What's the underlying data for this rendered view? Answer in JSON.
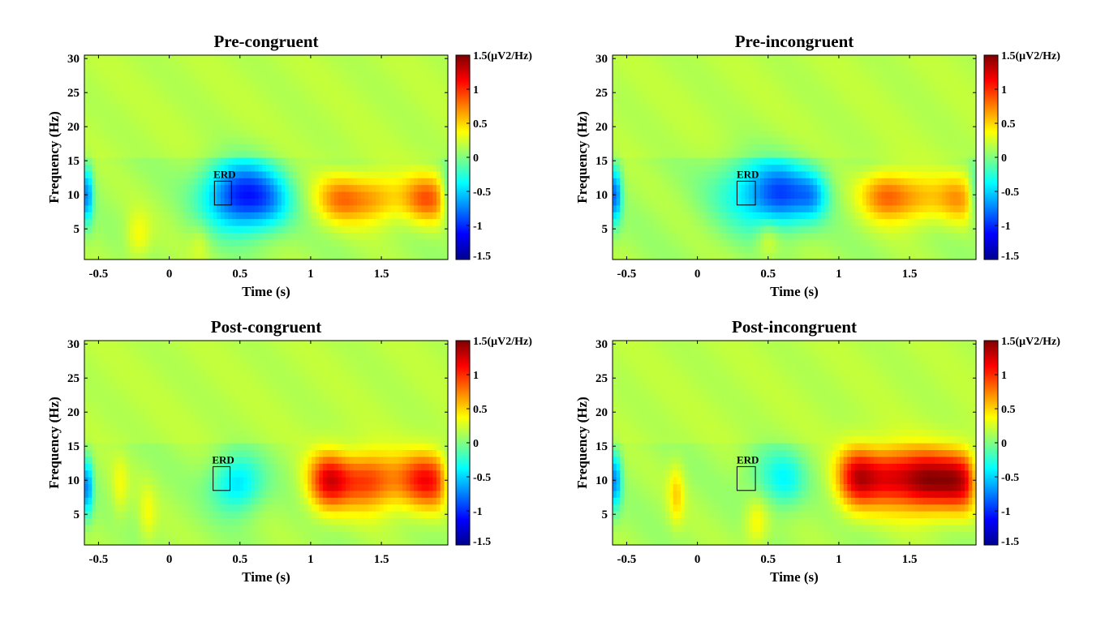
{
  "chart_data": [
    {
      "type": "heatmap",
      "title": "Pre-congruent",
      "xlabel": "Time (s)",
      "ylabel": "Frequency (Hz)",
      "xlim": [
        -0.6,
        1.97
      ],
      "ylim": [
        0.5,
        30.5
      ],
      "xticks": [
        -0.5,
        0,
        0.5,
        1,
        1.5
      ],
      "xticklabels": [
        "-0.5",
        "0",
        "0.5",
        "1",
        "1.5"
      ],
      "yticks": [
        5,
        10,
        15,
        20,
        25,
        30
      ],
      "yticklabels": [
        "5",
        "10",
        "15",
        "20",
        "25",
        "30"
      ],
      "colorbar": {
        "min": -1.5,
        "max": 1.5,
        "ticks": [
          -1.5,
          -1,
          -0.5,
          0,
          0.5,
          1,
          1.5
        ],
        "ticklabels": [
          "-1.5",
          "-1",
          "-0.5",
          "0",
          "0.5",
          "1",
          "1.5(μV2/Hz)"
        ]
      },
      "annotation": {
        "text": "ERD",
        "t_range": [
          0.32,
          0.44
        ],
        "f_range": [
          8.5,
          12
        ]
      },
      "features": [
        {
          "t": 0.5,
          "f": 10,
          "amp": -1.15,
          "st": 0.18,
          "sf": 3.6
        },
        {
          "t": 0.72,
          "f": 9,
          "amp": -0.35,
          "st": 0.12,
          "sf": 3
        },
        {
          "t": 1.2,
          "f": 9.5,
          "amp": 0.55,
          "st": 0.12,
          "sf": 2.5
        },
        {
          "t": 1.45,
          "f": 9.5,
          "amp": 0.5,
          "st": 0.14,
          "sf": 2.5
        },
        {
          "t": 1.82,
          "f": 9.5,
          "amp": 0.72,
          "st": 0.12,
          "sf": 2.5
        },
        {
          "t": -0.22,
          "f": 4,
          "amp": 0.25,
          "st": 0.06,
          "sf": 2.5
        },
        {
          "t": 0.22,
          "f": 3,
          "amp": 0.15,
          "st": 0.05,
          "sf": 2
        },
        {
          "t": -0.58,
          "f": 10,
          "amp": -0.8,
          "st": 0.03,
          "sf": 3
        },
        {
          "t": 1.96,
          "f": 10,
          "amp": -0.4,
          "st": 0.03,
          "sf": 3
        }
      ]
    },
    {
      "type": "heatmap",
      "title": "Pre-incongruent",
      "xlabel": "Time (s)",
      "ylabel": "Frequency (Hz)",
      "xlim": [
        -0.6,
        1.97
      ],
      "ylim": [
        0.5,
        30.5
      ],
      "xticks": [
        -0.5,
        0,
        0.5,
        1,
        1.5
      ],
      "xticklabels": [
        "-0.5",
        "0",
        "0.5",
        "1",
        "1.5"
      ],
      "yticks": [
        5,
        10,
        15,
        20,
        25,
        30
      ],
      "yticklabels": [
        "5",
        "10",
        "15",
        "20",
        "25",
        "30"
      ],
      "colorbar": {
        "min": -1.5,
        "max": 1.5,
        "ticks": [
          -1.5,
          -1,
          -0.5,
          0,
          0.5,
          1,
          1.5
        ],
        "ticklabels": [
          "-1.5",
          "-1",
          "-0.5",
          "0",
          "0.5",
          "1",
          "1.5(μV2/Hz)"
        ]
      },
      "annotation": {
        "text": "ERD",
        "t_range": [
          0.28,
          0.41
        ],
        "f_range": [
          8.5,
          12
        ]
      },
      "features": [
        {
          "t": 0.45,
          "f": 10.5,
          "amp": -0.65,
          "st": 0.22,
          "sf": 4
        },
        {
          "t": 0.62,
          "f": 10,
          "amp": -0.55,
          "st": 0.14,
          "sf": 3
        },
        {
          "t": 0.82,
          "f": 10,
          "amp": -0.45,
          "st": 0.08,
          "sf": 2.5
        },
        {
          "t": 1.32,
          "f": 10,
          "amp": 0.55,
          "st": 0.12,
          "sf": 2.5
        },
        {
          "t": 1.55,
          "f": 9.5,
          "amp": 0.45,
          "st": 0.16,
          "sf": 2.5
        },
        {
          "t": 1.85,
          "f": 9.5,
          "amp": 0.45,
          "st": 0.1,
          "sf": 2.5
        },
        {
          "t": 0.5,
          "f": 3.5,
          "amp": 0.25,
          "st": 0.06,
          "sf": 2
        },
        {
          "t": -0.58,
          "f": 10,
          "amp": -0.9,
          "st": 0.03,
          "sf": 3
        },
        {
          "t": 1.96,
          "f": 10,
          "amp": -0.4,
          "st": 0.03,
          "sf": 3
        }
      ]
    },
    {
      "type": "heatmap",
      "title": "Post-congruent",
      "xlabel": "Time (s)",
      "ylabel": "Frequency (Hz)",
      "xlim": [
        -0.6,
        1.97
      ],
      "ylim": [
        0.5,
        30.5
      ],
      "xticks": [
        -0.5,
        0,
        0.5,
        1,
        1.5
      ],
      "xticklabels": [
        "-0.5",
        "0",
        "0.5",
        "1",
        "1.5"
      ],
      "yticks": [
        5,
        10,
        15,
        20,
        25,
        30
      ],
      "yticklabels": [
        "5",
        "10",
        "15",
        "20",
        "25",
        "30"
      ],
      "colorbar": {
        "min": -1.5,
        "max": 1.5,
        "ticks": [
          -1.5,
          -1,
          -0.5,
          0,
          0.5,
          1,
          1.5
        ],
        "ticklabels": [
          "-1.5",
          "-1",
          "-0.5",
          "0",
          "0.5",
          "1",
          "1.5(μV2/Hz)"
        ]
      },
      "annotation": {
        "text": "ERD",
        "t_range": [
          0.31,
          0.43
        ],
        "f_range": [
          8.5,
          12
        ]
      },
      "features": [
        {
          "t": 0.48,
          "f": 9.5,
          "amp": -0.6,
          "st": 0.13,
          "sf": 3
        },
        {
          "t": 1.12,
          "f": 10,
          "amp": 0.9,
          "st": 0.1,
          "sf": 3
        },
        {
          "t": 1.4,
          "f": 10,
          "amp": 0.85,
          "st": 0.16,
          "sf": 3
        },
        {
          "t": 1.82,
          "f": 10,
          "amp": 0.95,
          "st": 0.14,
          "sf": 3
        },
        {
          "t": -0.35,
          "f": 9,
          "amp": 0.2,
          "st": 0.04,
          "sf": 3
        },
        {
          "t": -0.15,
          "f": 5,
          "amp": 0.2,
          "st": 0.04,
          "sf": 3
        },
        {
          "t": -0.58,
          "f": 9,
          "amp": -0.8,
          "st": 0.03,
          "sf": 3
        },
        {
          "t": 1.96,
          "f": 10,
          "amp": -0.3,
          "st": 0.03,
          "sf": 3
        }
      ]
    },
    {
      "type": "heatmap",
      "title": "Post-incongruent",
      "xlabel": "Time (s)",
      "ylabel": "Frequency (Hz)",
      "xlim": [
        -0.6,
        1.97
      ],
      "ylim": [
        0.5,
        30.5
      ],
      "xticks": [
        -0.5,
        0,
        0.5,
        1,
        1.5
      ],
      "xticklabels": [
        "-0.5",
        "0",
        "0.5",
        "1",
        "1.5"
      ],
      "yticks": [
        5,
        10,
        15,
        20,
        25,
        30
      ],
      "yticklabels": [
        "5",
        "10",
        "15",
        "20",
        "25",
        "30"
      ],
      "colorbar": {
        "min": -1.5,
        "max": 1.5,
        "ticks": [
          -1.5,
          -1,
          -0.5,
          0,
          0.5,
          1,
          1.5
        ],
        "ticklabels": [
          "-1.5",
          "-1",
          "-0.5",
          "0",
          "0.5",
          "1",
          "1.5(μV2/Hz)"
        ]
      },
      "annotation": {
        "text": "ERD",
        "t_range": [
          0.28,
          0.41
        ],
        "f_range": [
          8.5,
          12
        ]
      },
      "features": [
        {
          "t": 0.62,
          "f": 10,
          "amp": -0.45,
          "st": 0.1,
          "sf": 3
        },
        {
          "t": 0.45,
          "f": 11,
          "amp": -0.2,
          "st": 0.1,
          "sf": 3
        },
        {
          "t": 1.12,
          "f": 10.5,
          "amp": 0.85,
          "st": 0.1,
          "sf": 3.2
        },
        {
          "t": 1.35,
          "f": 10.5,
          "amp": 0.95,
          "st": 0.15,
          "sf": 3.2
        },
        {
          "t": 1.62,
          "f": 10,
          "amp": 1.05,
          "st": 0.13,
          "sf": 3.2
        },
        {
          "t": 1.86,
          "f": 10,
          "amp": 1.0,
          "st": 0.12,
          "sf": 3.2
        },
        {
          "t": -0.15,
          "f": 8,
          "amp": 0.35,
          "st": 0.04,
          "sf": 3
        },
        {
          "t": 0.42,
          "f": 4,
          "amp": 0.3,
          "st": 0.06,
          "sf": 2.5
        },
        {
          "t": -0.58,
          "f": 10,
          "amp": -0.8,
          "st": 0.03,
          "sf": 3
        },
        {
          "t": 1.96,
          "f": 10,
          "amp": -0.3,
          "st": 0.03,
          "sf": 3
        }
      ]
    }
  ]
}
